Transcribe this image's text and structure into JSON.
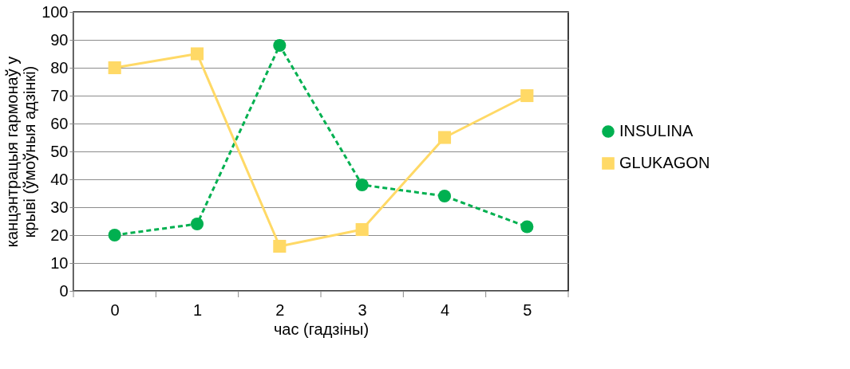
{
  "chart_data": {
    "type": "line",
    "xlabel": "час (гадзіны)",
    "ylabel": "канцэнтрацыя гармонаў у крыві (ўмоўныя адзінкі)",
    "categories": [
      "0",
      "1",
      "2",
      "3",
      "4",
      "5"
    ],
    "series": [
      {
        "name": "INSULINA",
        "color": "#00b050",
        "marker": "circle",
        "line_style": "dashed",
        "values": [
          20,
          24,
          88,
          38,
          34,
          23
        ]
      },
      {
        "name": "GLUKAGON",
        "color": "#ffd966",
        "marker": "square",
        "line_style": "solid",
        "values": [
          80,
          85,
          16,
          22,
          55,
          70
        ]
      }
    ],
    "ylim": [
      0,
      100
    ],
    "yticks": [
      0,
      10,
      20,
      30,
      40,
      50,
      60,
      70,
      80,
      90,
      100
    ],
    "grid": "y",
    "legend": "right"
  }
}
